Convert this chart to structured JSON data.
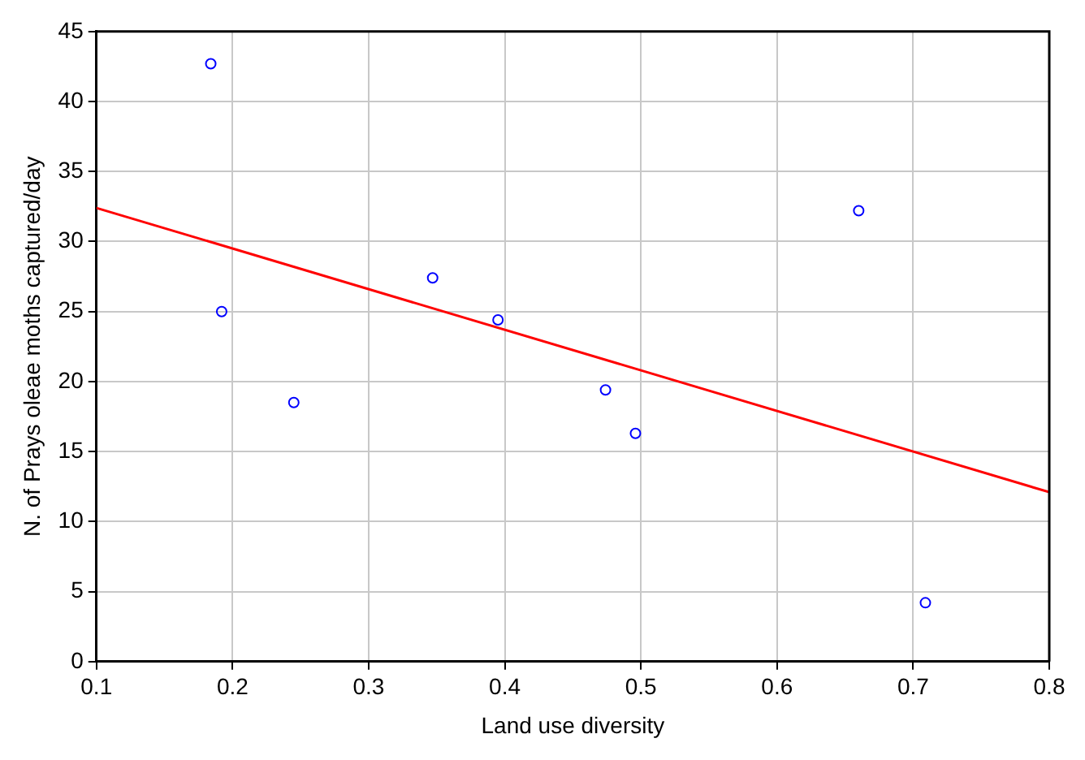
{
  "chart_data": {
    "type": "scatter",
    "xlabel": "Land use diversity",
    "ylabel": "N. of Prays oleae moths captured/day",
    "xlim": [
      0.1,
      0.8
    ],
    "xticks": [
      0.1,
      0.2,
      0.3,
      0.4,
      0.5,
      0.6,
      0.7,
      0.8
    ],
    "ylim": [
      0,
      45
    ],
    "yticks": [
      0,
      5,
      10,
      15,
      20,
      25,
      30,
      35,
      40,
      45
    ],
    "grid": true,
    "legend": false,
    "series": [
      {
        "marker": "circle",
        "color": "#0000ff",
        "x": [
          0.184,
          0.192,
          0.245,
          0.347,
          0.395,
          0.474,
          0.496,
          0.66,
          0.709
        ],
        "values": [
          42.7,
          25.0,
          18.5,
          27.4,
          24.4,
          19.4,
          16.3,
          32.2,
          4.2
        ]
      },
      {
        "type": "line",
        "color": "#ff0000",
        "x": [
          0.1,
          0.8
        ],
        "values": [
          32.4,
          12.1
        ]
      }
    ]
  }
}
